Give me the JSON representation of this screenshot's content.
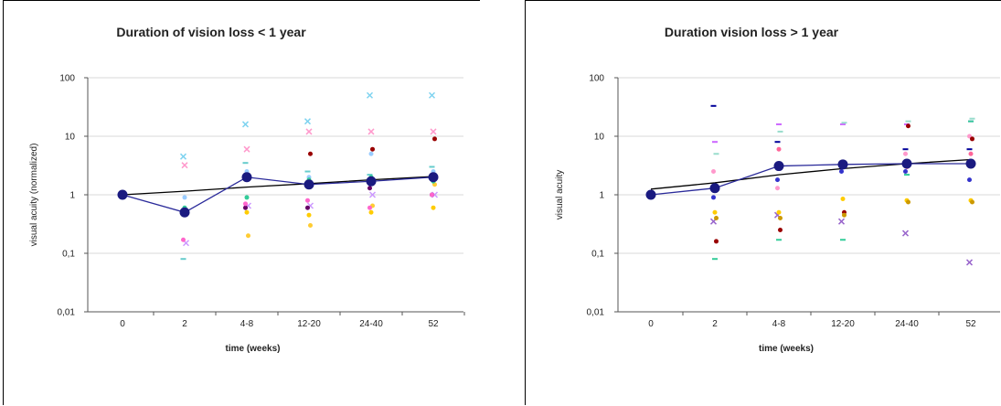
{
  "chart_data": [
    {
      "type": "scatter",
      "title": "Duration of vision loss < 1 year",
      "xlabel": "time (weeks)",
      "ylabel": "visual acuity (normalized)",
      "categories": [
        "0",
        "2",
        "4-8",
        "12-20",
        "24-40",
        "52"
      ],
      "yscale": "log",
      "ylim": [
        0.01,
        100
      ],
      "yticks": [
        100,
        10,
        1,
        0.1,
        0.01
      ],
      "ytick_labels": [
        "100",
        "10",
        "1",
        "0,1",
        "0,01"
      ],
      "grid": true,
      "legend": "none",
      "series": [
        {
          "color": "#7fd3f0",
          "marker": "x",
          "values": [
            null,
            4.5,
            16,
            18,
            50,
            50
          ]
        },
        {
          "color": "#ff99cc",
          "marker": "x",
          "values": [
            null,
            3.2,
            6,
            12,
            12,
            12
          ]
        },
        {
          "color": "#990000",
          "marker": "dot",
          "values": [
            null,
            null,
            null,
            5,
            6,
            9
          ]
        },
        {
          "color": "#66cccc",
          "marker": "dash",
          "values": [
            null,
            0.08,
            3.5,
            2.5,
            2.2,
            3
          ]
        },
        {
          "color": "#99ccff",
          "marker": "dot",
          "values": [
            null,
            0.9,
            2.5,
            2,
            5,
            2.5
          ]
        },
        {
          "color": "#cc99ff",
          "marker": "x",
          "values": [
            null,
            0.15,
            0.65,
            0.65,
            1,
            1
          ]
        },
        {
          "color": "#660066",
          "marker": "dot",
          "values": [
            null,
            null,
            0.6,
            0.6,
            1.3,
            1
          ]
        },
        {
          "color": "#ffcc00",
          "marker": "dot",
          "values": [
            null,
            0.55,
            0.5,
            0.45,
            0.5,
            0.6
          ]
        },
        {
          "color": "#ffcc33",
          "marker": "dot",
          "values": [
            null,
            null,
            0.2,
            0.3,
            0.65,
            1.5
          ]
        },
        {
          "color": "#ff66cc",
          "marker": "dot",
          "values": [
            null,
            0.17,
            0.7,
            0.8,
            0.6,
            1
          ]
        },
        {
          "color": "#33cc99",
          "marker": "dot",
          "values": [
            null,
            0.6,
            0.9,
            1.8,
            2,
            1.7
          ]
        }
      ],
      "mean": {
        "color": "#1a1a80",
        "values": [
          1,
          0.5,
          2,
          1.5,
          1.7,
          2
        ]
      },
      "trend": {
        "color": "#000000",
        "values": [
          1,
          1.15,
          1.35,
          1.55,
          1.8,
          2.05
        ]
      }
    },
    {
      "type": "scatter",
      "title": "Duration vision loss > 1 year",
      "xlabel": "time (weeks)",
      "ylabel": "visual acuity",
      "categories": [
        "0",
        "2",
        "4-8",
        "12-20",
        "24-40",
        "52"
      ],
      "yscale": "log",
      "ylim": [
        0.01,
        100
      ],
      "yticks": [
        100,
        10,
        1,
        0.1,
        0.01
      ],
      "ytick_labels": [
        "100",
        "10",
        "1",
        "0,1",
        "0,01"
      ],
      "grid": true,
      "legend": "none",
      "series": [
        {
          "color": "#000099",
          "marker": "dash",
          "values": [
            null,
            33,
            8,
            3.5,
            6,
            6
          ]
        },
        {
          "color": "#cc66ff",
          "marker": "dash",
          "values": [
            null,
            8,
            16,
            16,
            16,
            18
          ]
        },
        {
          "color": "#99ddcc",
          "marker": "dash",
          "values": [
            null,
            5,
            12,
            17,
            18,
            20
          ]
        },
        {
          "color": "#ff99cc",
          "marker": "dot",
          "values": [
            null,
            2.5,
            1.3,
            3.5,
            5,
            10
          ]
        },
        {
          "color": "#33cc99",
          "marker": "dash",
          "values": [
            null,
            0.08,
            0.17,
            0.17,
            2.2,
            18
          ]
        },
        {
          "color": "#990000",
          "marker": "dot",
          "values": [
            null,
            0.16,
            0.25,
            0.5,
            15,
            9
          ]
        },
        {
          "color": "#9966cc",
          "marker": "x",
          "values": [
            null,
            0.35,
            0.45,
            0.35,
            0.22,
            0.07
          ]
        },
        {
          "color": "#ffcc00",
          "marker": "dot",
          "values": [
            null,
            0.5,
            0.5,
            0.85,
            0.8,
            0.8
          ]
        },
        {
          "color": "#cc9900",
          "marker": "dot",
          "values": [
            null,
            0.4,
            0.4,
            0.45,
            0.75,
            0.75
          ]
        },
        {
          "color": "#3333cc",
          "marker": "dot",
          "values": [
            null,
            0.9,
            1.8,
            2.5,
            2.5,
            1.8
          ]
        },
        {
          "color": "#ff6699",
          "marker": "dot",
          "values": [
            null,
            1.2,
            6,
            3,
            3,
            5
          ]
        }
      ],
      "mean": {
        "color": "#1a1a80",
        "values": [
          1,
          1.3,
          3.1,
          3.3,
          3.4,
          3.4
        ]
      },
      "trend": {
        "color": "#000000",
        "values": [
          1.25,
          1.6,
          2.2,
          2.8,
          3.4,
          4
        ]
      }
    }
  ]
}
